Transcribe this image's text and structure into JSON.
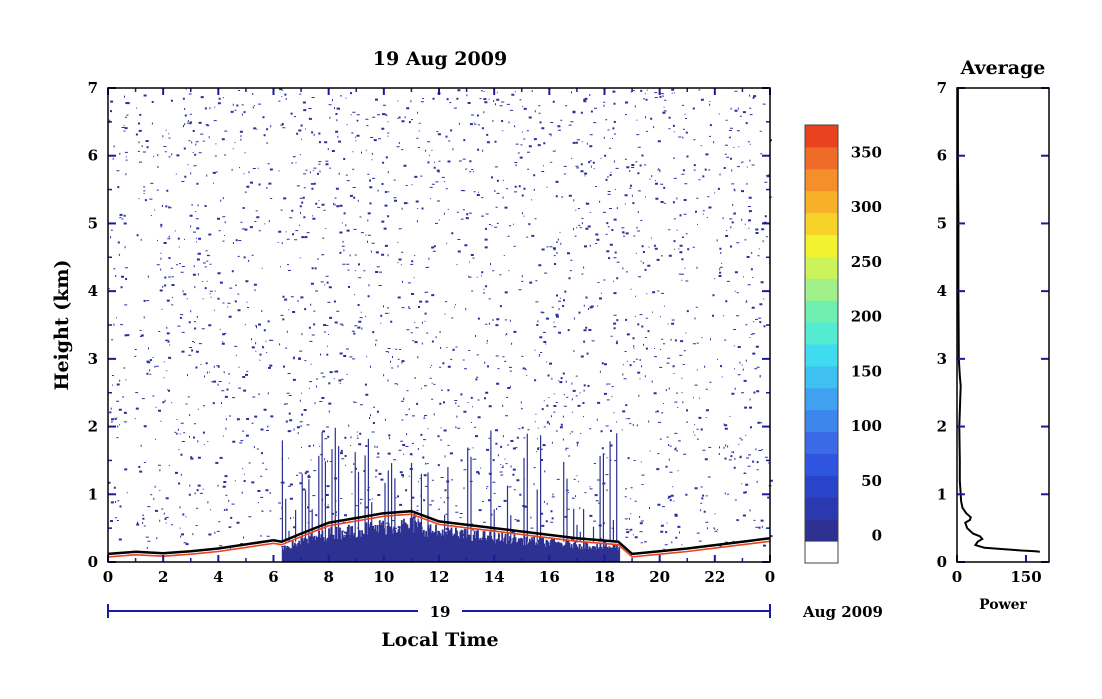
{
  "colors": {
    "background": "#ffffff",
    "axis_tick": "#1a1aa0",
    "noise": "#2b2f9c",
    "warm_edge": "#e8421e"
  },
  "chart_data": [
    {
      "type": "heatmap",
      "title": "19 Aug 2009",
      "xlabel": "Local Time",
      "ylabel": "Height (km)",
      "xlim": [
        0,
        24
      ],
      "ylim": [
        0,
        7
      ],
      "x_ticks": [
        "0",
        "2",
        "4",
        "6",
        "8",
        "10",
        "12",
        "14",
        "16",
        "18",
        "20",
        "22",
        "0"
      ],
      "y_ticks": [
        "0",
        "1",
        "2",
        "3",
        "4",
        "5",
        "6",
        "7"
      ],
      "date_axis": {
        "day_label": "19",
        "month_year_label": "Aug 2009"
      },
      "boundary_layer_height_km": [
        [
          0.0,
          0.12
        ],
        [
          1.0,
          0.15
        ],
        [
          2.0,
          0.13
        ],
        [
          3.0,
          0.16
        ],
        [
          4.0,
          0.2
        ],
        [
          5.0,
          0.26
        ],
        [
          6.0,
          0.32
        ],
        [
          6.3,
          0.3
        ],
        [
          7.0,
          0.42
        ],
        [
          8.0,
          0.58
        ],
        [
          9.0,
          0.65
        ],
        [
          10.0,
          0.72
        ],
        [
          11.0,
          0.75
        ],
        [
          12.0,
          0.6
        ],
        [
          13.0,
          0.55
        ],
        [
          14.0,
          0.5
        ],
        [
          15.0,
          0.45
        ],
        [
          16.0,
          0.4
        ],
        [
          17.0,
          0.35
        ],
        [
          18.5,
          0.3
        ],
        [
          19.0,
          0.12
        ],
        [
          20.0,
          0.16
        ],
        [
          21.0,
          0.2
        ],
        [
          22.0,
          0.25
        ],
        [
          23.0,
          0.3
        ],
        [
          24.0,
          0.35
        ]
      ],
      "colorbar": {
        "ticks": [
          "350",
          "300",
          "250",
          "200",
          "150",
          "100",
          "50",
          "0"
        ],
        "range": [
          -25,
          375
        ],
        "colors": [
          "#ffffff",
          "#2d3192",
          "#2b39b0",
          "#2a44c9",
          "#2f54e0",
          "#3a6ae6",
          "#3c86ec",
          "#3fa1ef",
          "#3ec0f0",
          "#3fdcef",
          "#53ecd2",
          "#6ff0b0",
          "#a2f08a",
          "#cdf35a",
          "#f2f32e",
          "#f7d32a",
          "#f8b029",
          "#f58f2a",
          "#f06b28",
          "#e8421e"
        ]
      }
    },
    {
      "type": "line",
      "title": "Average",
      "xlabel": "Power",
      "ylabel": "",
      "xlim": [
        0,
        200
      ],
      "ylim": [
        0,
        7
      ],
      "x_ticks": [
        "0",
        "150"
      ],
      "y_ticks": [
        "0",
        "1",
        "2",
        "3",
        "4",
        "5",
        "6",
        "7"
      ],
      "series": [
        {
          "points": [
            [
              180,
              0.15
            ],
            [
              170,
              0.16
            ],
            [
              140,
              0.17
            ],
            [
              100,
              0.19
            ],
            [
              60,
              0.21
            ],
            [
              40,
              0.25
            ],
            [
              45,
              0.3
            ],
            [
              55,
              0.34
            ],
            [
              50,
              0.38
            ],
            [
              35,
              0.42
            ],
            [
              22,
              0.5
            ],
            [
              18,
              0.58
            ],
            [
              28,
              0.62
            ],
            [
              30,
              0.66
            ],
            [
              20,
              0.72
            ],
            [
              12,
              0.8
            ],
            [
              9,
              0.9
            ],
            [
              8,
              1.0
            ],
            [
              6,
              1.2
            ],
            [
              6,
              1.5
            ],
            [
              5,
              2.0
            ],
            [
              7,
              2.4
            ],
            [
              8,
              2.6
            ],
            [
              6,
              2.75
            ],
            [
              4,
              3.0
            ],
            [
              3,
              4.0
            ],
            [
              3,
              5.0
            ],
            [
              2,
              6.0
            ],
            [
              2,
              7.0
            ]
          ]
        }
      ]
    }
  ]
}
